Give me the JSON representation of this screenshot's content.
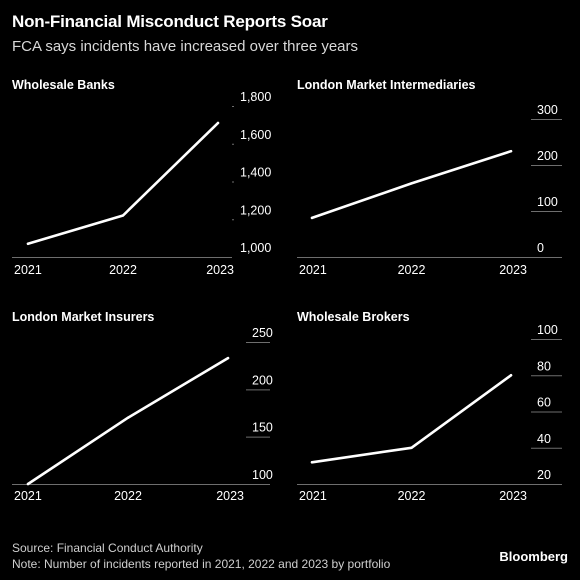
{
  "header": {
    "title": "Non-Financial Misconduct Reports Soar",
    "subtitle": "FCA says incidents have increased over three years"
  },
  "footer": {
    "source": "Source: Financial Conduct Authority",
    "note": "Note: Number of incidents reported in 2021, 2022 and 2023 by portfolio",
    "brand": "Bloomberg"
  },
  "colors": {
    "background": "#000000",
    "line": "#ffffff",
    "grid": "#6e6e6e",
    "text": "#ffffff"
  },
  "chart_data": [
    {
      "type": "line",
      "title": "Wholesale Banks",
      "categories": [
        "2021",
        "2022",
        "2023"
      ],
      "values": [
        1070,
        1220,
        1710
      ],
      "ylim": [
        1000,
        1800
      ],
      "yticks": [
        1000,
        1200,
        1400,
        1600,
        1800
      ],
      "ytick_labels": [
        "1,000",
        "1,200",
        "1,400",
        "1,600",
        "1,800"
      ],
      "xlabel": "",
      "ylabel": "",
      "grid": true
    },
    {
      "type": "line",
      "title": "London Market Intermediaries",
      "categories": [
        "2021",
        "2022",
        "2023"
      ],
      "values": [
        85,
        160,
        230
      ],
      "ylim": [
        0,
        300
      ],
      "yticks": [
        0,
        100,
        200,
        300
      ],
      "ytick_labels": [
        "0",
        "100",
        "200",
        "300"
      ],
      "xlabel": "",
      "ylabel": "",
      "grid": true
    },
    {
      "type": "line",
      "title": "London Market Insurers",
      "categories": [
        "2021",
        "2022",
        "2023"
      ],
      "values": [
        100,
        170,
        233
      ],
      "ylim": [
        100,
        250
      ],
      "yticks": [
        100,
        150,
        200,
        250
      ],
      "ytick_labels": [
        "100",
        "150",
        "200",
        "250"
      ],
      "xlabel": "",
      "ylabel": "",
      "grid": true
    },
    {
      "type": "line",
      "title": "Wholesale Brokers",
      "categories": [
        "2021",
        "2022",
        "2023"
      ],
      "values": [
        32,
        40,
        80
      ],
      "ylim": [
        20,
        100
      ],
      "yticks": [
        20,
        40,
        60,
        80,
        100
      ],
      "ytick_labels": [
        "20",
        "40",
        "60",
        "80",
        "100"
      ],
      "xlabel": "",
      "ylabel": "",
      "grid": true
    }
  ]
}
